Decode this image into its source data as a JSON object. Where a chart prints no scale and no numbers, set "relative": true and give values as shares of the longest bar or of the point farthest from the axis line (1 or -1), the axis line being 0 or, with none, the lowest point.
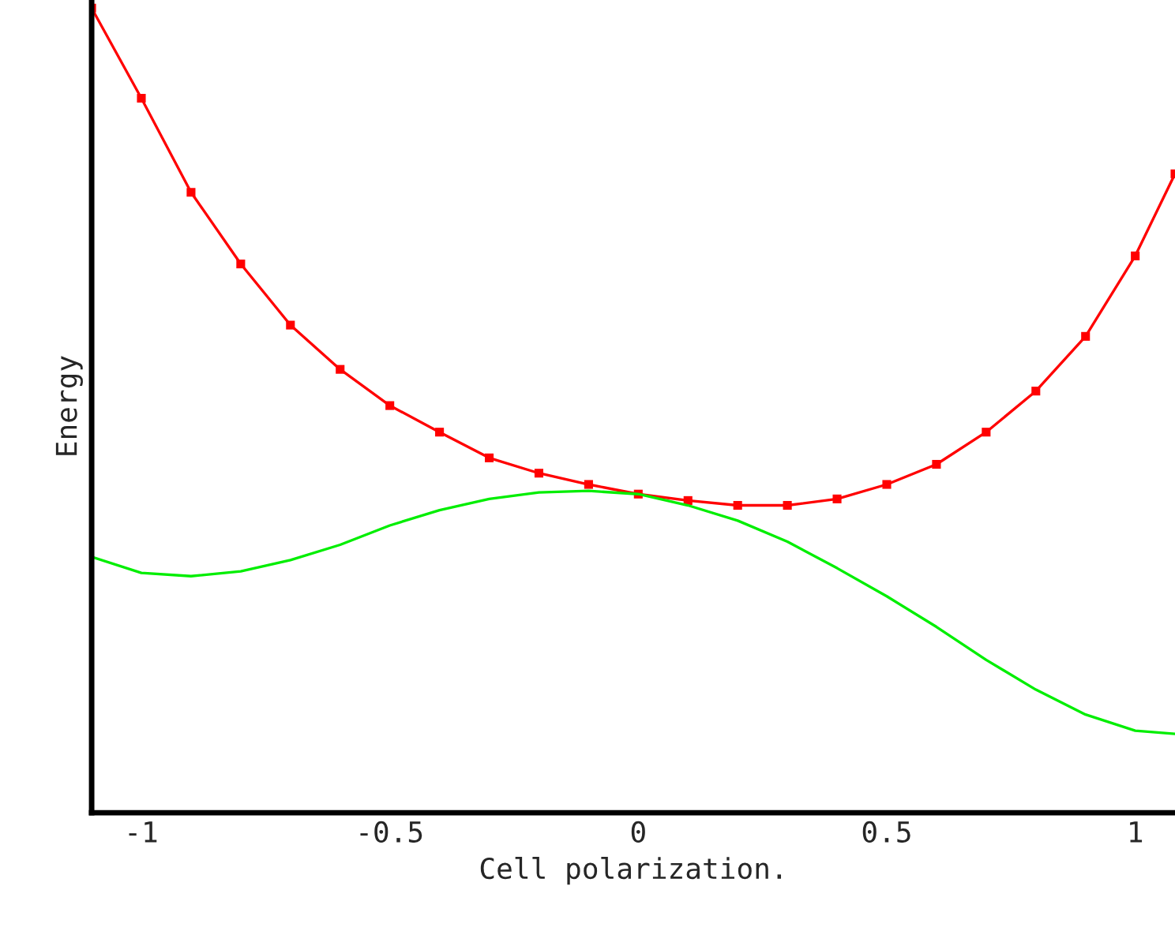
{
  "chart_data": {
    "type": "line",
    "xlabel": "Cell polarization.",
    "ylabel": "Energy",
    "relative": true,
    "xlim": [
      -1.1,
      1.08
    ],
    "xticks": [
      -1,
      -0.5,
      0,
      0.5,
      1
    ],
    "tick_labels": "x",
    "grid": false,
    "legend": false,
    "series": [
      {
        "color": "#ff0000",
        "marker": "square",
        "line_style": "solid",
        "x": [
          -1.1,
          -1.0,
          -0.9,
          -0.8,
          -0.7,
          -0.6,
          -0.5,
          -0.4,
          -0.3,
          -0.2,
          -0.1,
          0.0,
          0.1,
          0.2,
          0.3,
          0.4,
          0.5,
          0.6,
          0.7,
          0.8,
          0.9,
          1.0,
          1.08
        ],
        "values": [
          1.0,
          0.888,
          0.771,
          0.682,
          0.606,
          0.551,
          0.506,
          0.473,
          0.441,
          0.422,
          0.408,
          0.396,
          0.388,
          0.382,
          0.382,
          0.39,
          0.408,
          0.433,
          0.473,
          0.524,
          0.592,
          0.692,
          0.794
        ]
      },
      {
        "color": "#00ee00",
        "marker": "none",
        "line_style": "solid",
        "x": [
          -1.1,
          -1.0,
          -0.9,
          -0.8,
          -0.7,
          -0.6,
          -0.5,
          -0.4,
          -0.3,
          -0.2,
          -0.1,
          0.0,
          0.1,
          0.2,
          0.3,
          0.4,
          0.5,
          0.6,
          0.7,
          0.8,
          0.9,
          1.0,
          1.08
        ],
        "values": [
          0.318,
          0.298,
          0.294,
          0.3,
          0.314,
          0.333,
          0.357,
          0.376,
          0.39,
          0.398,
          0.4,
          0.396,
          0.382,
          0.363,
          0.337,
          0.304,
          0.269,
          0.231,
          0.19,
          0.153,
          0.122,
          0.102,
          0.098
        ]
      }
    ]
  }
}
